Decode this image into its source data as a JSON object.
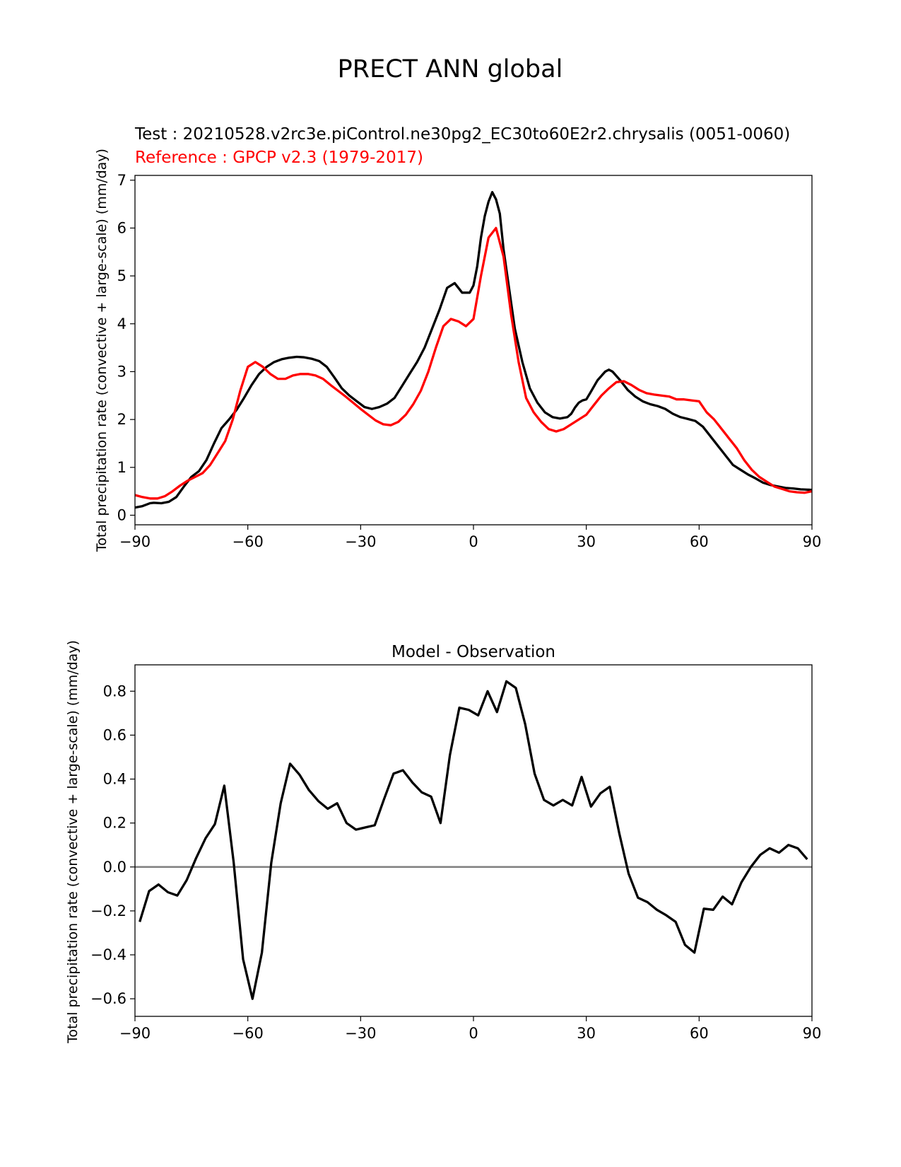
{
  "figure": {
    "title": "PRECT ANN global"
  },
  "chart_data": [
    {
      "type": "line",
      "test_label": "Test : 20210528.v2rc3e.piControl.ne30pg2_EC30to60E2r2.chrysalis (0051-0060)",
      "ref_label": "Reference : GPCP v2.3 (1979-2017)",
      "xlabel": "",
      "ylabel": "Total precipitation rate (convective + large-scale) (mm/day)",
      "xlim": [
        -90,
        90
      ],
      "ylim": [
        -0.2,
        7.1
      ],
      "xticks": [
        -90,
        -60,
        -30,
        0,
        30,
        60,
        90
      ],
      "xtick_labels": [
        "−90",
        "−60",
        "−30",
        "0",
        "30",
        "60",
        "90"
      ],
      "yticks": [
        0,
        1,
        2,
        3,
        4,
        5,
        6,
        7
      ],
      "ytick_labels": [
        "0",
        "1",
        "2",
        "3",
        "4",
        "5",
        "6",
        "7"
      ],
      "series": [
        {
          "name": "Test",
          "color": "#000000",
          "x": [
            -90,
            -88,
            -86,
            -85,
            -83,
            -81,
            -79,
            -77,
            -75,
            -73,
            -71,
            -69,
            -67,
            -65,
            -63,
            -61,
            -59,
            -57,
            -55,
            -53,
            -51,
            -49,
            -47,
            -45,
            -43,
            -41,
            -39,
            -37,
            -35,
            -33,
            -31,
            -29,
            -27,
            -25,
            -23,
            -21,
            -19,
            -17,
            -15,
            -13,
            -11,
            -9,
            -7,
            -5,
            -3,
            -1,
            0,
            1,
            2,
            3,
            4,
            5,
            6,
            7,
            8,
            9,
            11,
            13,
            15,
            17,
            19,
            21,
            23,
            25,
            26,
            27,
            28,
            29,
            30,
            31,
            33,
            35,
            36,
            37,
            39,
            41,
            43,
            45,
            47,
            49,
            51,
            53,
            55,
            57,
            59,
            61,
            63,
            65,
            67,
            69,
            71,
            73,
            75,
            77,
            79,
            81,
            83,
            85,
            87,
            90
          ],
          "values": [
            0.16,
            0.19,
            0.25,
            0.26,
            0.25,
            0.28,
            0.38,
            0.6,
            0.8,
            0.92,
            1.15,
            1.5,
            1.82,
            2.0,
            2.2,
            2.45,
            2.72,
            2.95,
            3.1,
            3.2,
            3.26,
            3.29,
            3.31,
            3.3,
            3.27,
            3.22,
            3.1,
            2.88,
            2.65,
            2.5,
            2.38,
            2.26,
            2.22,
            2.26,
            2.33,
            2.45,
            2.7,
            2.95,
            3.2,
            3.5,
            3.9,
            4.3,
            4.75,
            4.85,
            4.65,
            4.65,
            4.8,
            5.2,
            5.8,
            6.25,
            6.55,
            6.75,
            6.6,
            6.3,
            5.55,
            5.0,
            3.9,
            3.2,
            2.65,
            2.35,
            2.15,
            2.05,
            2.02,
            2.05,
            2.12,
            2.25,
            2.35,
            2.4,
            2.42,
            2.55,
            2.82,
            3.0,
            3.04,
            3.0,
            2.82,
            2.62,
            2.48,
            2.38,
            2.32,
            2.28,
            2.22,
            2.12,
            2.05,
            2.01,
            1.97,
            1.85,
            1.65,
            1.45,
            1.25,
            1.05,
            0.95,
            0.85,
            0.77,
            0.68,
            0.63,
            0.6,
            0.57,
            0.56,
            0.54,
            0.53
          ]
        },
        {
          "name": "Reference",
          "color": "#ff0000",
          "x": [
            -90,
            -88,
            -86,
            -84,
            -82,
            -80,
            -78,
            -76,
            -74,
            -72,
            -70,
            -68,
            -66,
            -64,
            -62,
            -60,
            -58,
            -56,
            -54,
            -52,
            -50,
            -48,
            -46,
            -44,
            -42,
            -40,
            -38,
            -36,
            -34,
            -32,
            -30,
            -28,
            -26,
            -24,
            -22,
            -20,
            -18,
            -16,
            -14,
            -12,
            -10,
            -8,
            -6,
            -4,
            -2,
            0,
            2,
            4,
            6,
            8,
            10,
            12,
            14,
            16,
            18,
            20,
            22,
            24,
            26,
            28,
            30,
            32,
            34,
            36,
            38,
            40,
            42,
            44,
            46,
            48,
            50,
            52,
            54,
            56,
            58,
            60,
            62,
            64,
            66,
            68,
            70,
            72,
            74,
            76,
            78,
            80,
            82,
            84,
            86,
            88,
            90
          ],
          "values": [
            0.42,
            0.38,
            0.35,
            0.35,
            0.4,
            0.5,
            0.62,
            0.72,
            0.8,
            0.88,
            1.05,
            1.3,
            1.55,
            2.0,
            2.6,
            3.1,
            3.2,
            3.1,
            2.95,
            2.85,
            2.85,
            2.92,
            2.95,
            2.95,
            2.92,
            2.85,
            2.72,
            2.6,
            2.48,
            2.35,
            2.22,
            2.1,
            1.98,
            1.9,
            1.88,
            1.95,
            2.1,
            2.32,
            2.6,
            3.0,
            3.5,
            3.95,
            4.1,
            4.05,
            3.95,
            4.1,
            5.0,
            5.8,
            6.0,
            5.4,
            4.2,
            3.2,
            2.45,
            2.15,
            1.95,
            1.8,
            1.75,
            1.8,
            1.9,
            2.0,
            2.1,
            2.3,
            2.5,
            2.65,
            2.78,
            2.8,
            2.72,
            2.62,
            2.55,
            2.52,
            2.5,
            2.48,
            2.42,
            2.42,
            2.4,
            2.38,
            2.15,
            2.0,
            1.8,
            1.6,
            1.4,
            1.15,
            0.95,
            0.8,
            0.7,
            0.6,
            0.55,
            0.5,
            0.48,
            0.47,
            0.5
          ]
        }
      ]
    },
    {
      "type": "line",
      "title": "Model - Observation",
      "xlabel": "",
      "ylabel": "Total precipitation rate (convective + large-scale) (mm/day)",
      "xlim": [
        -90,
        90
      ],
      "ylim": [
        -0.68,
        0.92
      ],
      "xticks": [
        -90,
        -60,
        -30,
        0,
        30,
        60,
        90
      ],
      "xtick_labels": [
        "−90",
        "−60",
        "−30",
        "0",
        "30",
        "60",
        "90"
      ],
      "yticks": [
        -0.6,
        -0.4,
        -0.2,
        0.0,
        0.2,
        0.4,
        0.6,
        0.8
      ],
      "ytick_labels": [
        "−0.6",
        "−0.4",
        "−0.2",
        "0.0",
        "0.2",
        "0.4",
        "0.6",
        "0.8"
      ],
      "reference_line": {
        "y": 0,
        "color": "#808080"
      },
      "series": [
        {
          "name": "Model - Observation",
          "color": "#000000",
          "x": [
            -88.75,
            -86.25,
            -83.75,
            -81.25,
            -78.75,
            -76.25,
            -73.75,
            -71.25,
            -68.75,
            -66.25,
            -63.75,
            -61.25,
            -58.75,
            -56.25,
            -53.75,
            -51.25,
            -48.75,
            -46.25,
            -43.75,
            -41.25,
            -38.75,
            -36.25,
            -33.75,
            -31.25,
            -28.75,
            -26.25,
            -23.75,
            -21.25,
            -18.75,
            -16.25,
            -13.75,
            -11.25,
            -8.75,
            -6.25,
            -3.75,
            -1.25,
            1.25,
            3.75,
            6.25,
            8.75,
            11.25,
            13.75,
            16.25,
            18.75,
            21.25,
            23.75,
            26.25,
            28.75,
            31.25,
            33.75,
            36.25,
            38.75,
            41.25,
            43.75,
            46.25,
            48.75,
            51.25,
            53.75,
            56.25,
            58.75,
            61.25,
            63.75,
            66.25,
            68.75,
            71.25,
            73.75,
            76.25,
            78.75,
            81.25,
            83.75,
            86.25,
            88.75
          ],
          "values": [
            -0.25,
            -0.11,
            -0.08,
            -0.115,
            -0.13,
            -0.06,
            0.04,
            0.13,
            0.195,
            0.37,
            0.02,
            -0.42,
            -0.6,
            -0.39,
            0.02,
            0.29,
            0.47,
            0.42,
            0.35,
            0.3,
            0.265,
            0.29,
            0.2,
            0.17,
            0.18,
            0.19,
            0.31,
            0.425,
            0.44,
            0.385,
            0.34,
            0.32,
            0.2,
            0.51,
            0.725,
            0.715,
            0.69,
            0.8,
            0.705,
            0.845,
            0.815,
            0.65,
            0.425,
            0.305,
            0.28,
            0.305,
            0.28,
            0.41,
            0.275,
            0.335,
            0.365,
            0.155,
            -0.03,
            -0.14,
            -0.16,
            -0.195,
            -0.22,
            -0.25,
            -0.355,
            -0.39,
            -0.19,
            -0.195,
            -0.135,
            -0.17,
            -0.07,
            0.0,
            0.055,
            0.085,
            0.065,
            0.1,
            0.085,
            0.035
          ]
        }
      ]
    }
  ]
}
